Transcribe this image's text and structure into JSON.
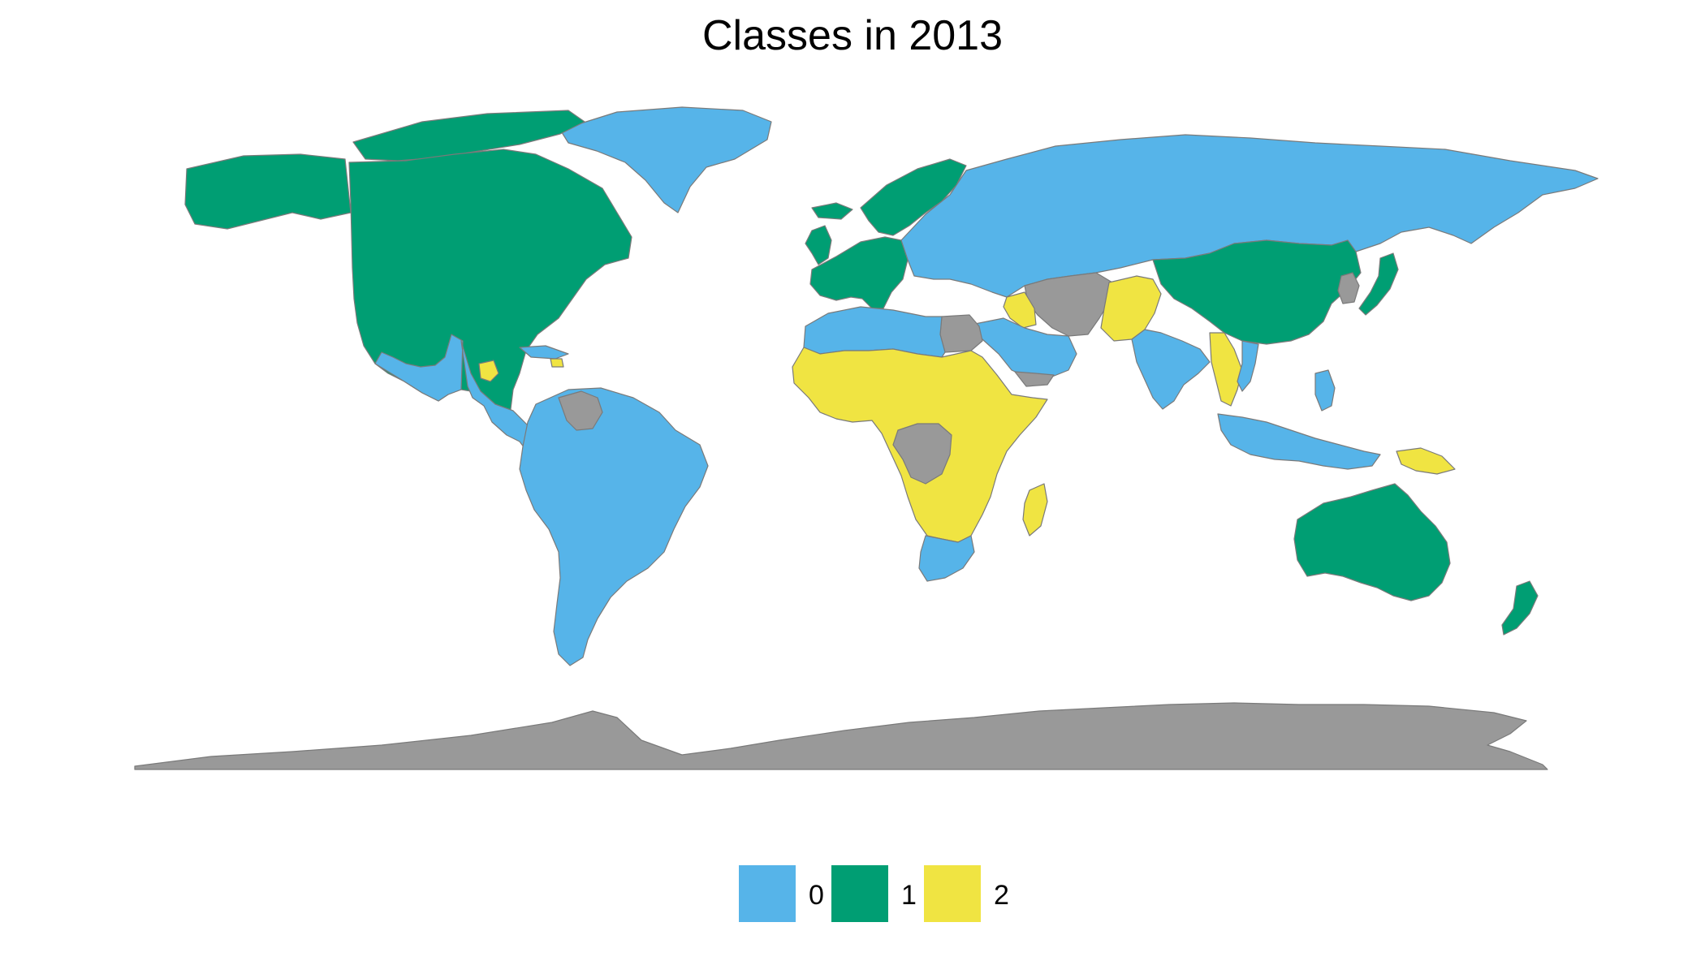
{
  "title": "Classes in 2013",
  "colors": {
    "0": "#56b4e9",
    "1": "#009e73",
    "2": "#f0e442",
    "na": "#999999"
  },
  "legend": {
    "items": [
      {
        "key": "0",
        "label": "0"
      },
      {
        "key": "1",
        "label": "1"
      },
      {
        "key": "2",
        "label": "2"
      }
    ]
  },
  "regions": [
    {
      "id": "greenland",
      "cls": "0"
    },
    {
      "id": "canada-usa",
      "cls": "1"
    },
    {
      "id": "alaska",
      "cls": "1"
    },
    {
      "id": "canadian-islands",
      "cls": "1"
    },
    {
      "id": "mexico-central-america",
      "cls": "0"
    },
    {
      "id": "guatemala-honduras",
      "cls": "2"
    },
    {
      "id": "cuba",
      "cls": "0"
    },
    {
      "id": "haiti",
      "cls": "2"
    },
    {
      "id": "south-america",
      "cls": "0"
    },
    {
      "id": "venezuela",
      "cls": "na"
    },
    {
      "id": "western-europe",
      "cls": "1"
    },
    {
      "id": "uk-ireland",
      "cls": "1"
    },
    {
      "id": "iceland",
      "cls": "1"
    },
    {
      "id": "scandinavia",
      "cls": "1"
    },
    {
      "id": "russia-eastern-europe",
      "cls": "0"
    },
    {
      "id": "china",
      "cls": "1"
    },
    {
      "id": "japan",
      "cls": "1"
    },
    {
      "id": "korea",
      "cls": "na"
    },
    {
      "id": "iran-central-asia",
      "cls": "na"
    },
    {
      "id": "iraq",
      "cls": "2"
    },
    {
      "id": "afghanistan-pakistan",
      "cls": "2"
    },
    {
      "id": "arabia",
      "cls": "0"
    },
    {
      "id": "yemen",
      "cls": "na"
    },
    {
      "id": "egypt",
      "cls": "na"
    },
    {
      "id": "north-africa",
      "cls": "0"
    },
    {
      "id": "sub-saharan-africa",
      "cls": "2"
    },
    {
      "id": "congo",
      "cls": "na"
    },
    {
      "id": "southern-africa",
      "cls": "0"
    },
    {
      "id": "madagascar",
      "cls": "2"
    },
    {
      "id": "india",
      "cls": "0"
    },
    {
      "id": "myanmar-thailand",
      "cls": "2"
    },
    {
      "id": "vietnam",
      "cls": "0"
    },
    {
      "id": "indonesia-malaysia",
      "cls": "0"
    },
    {
      "id": "philippines",
      "cls": "0"
    },
    {
      "id": "papua-new-guinea",
      "cls": "2"
    },
    {
      "id": "australia",
      "cls": "1"
    },
    {
      "id": "new-zealand",
      "cls": "1"
    },
    {
      "id": "antarctica",
      "cls": "na"
    }
  ]
}
